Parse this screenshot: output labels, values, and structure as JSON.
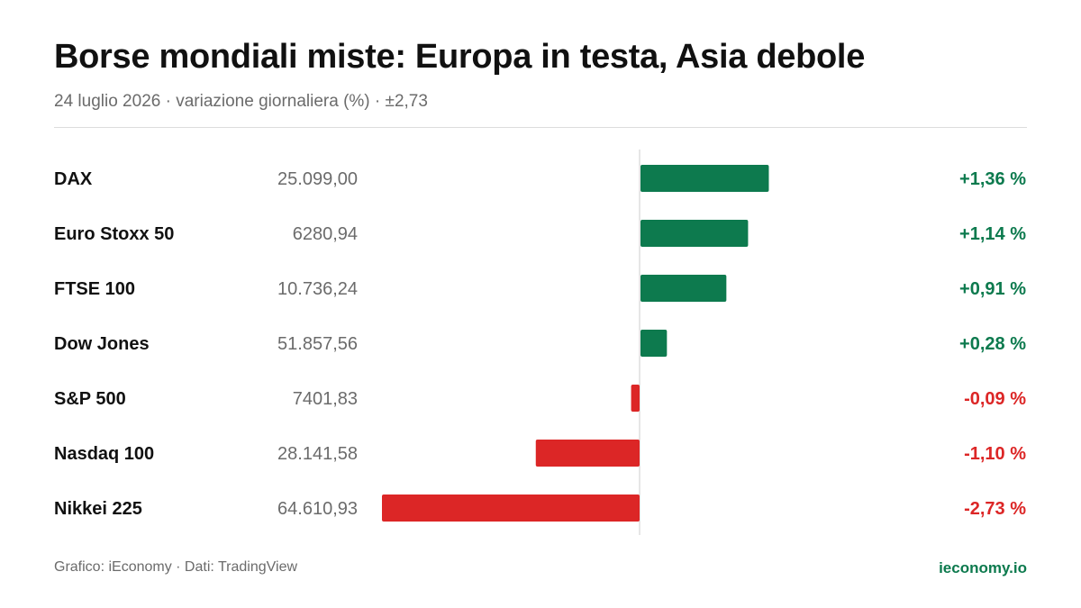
{
  "header": {
    "title": "Borse mondiali miste: Europa in testa, Asia debole",
    "subtitle": "24 luglio 2026 · variazione giornaliera (%) · ±2,73"
  },
  "footer": {
    "credit": "Grafico: iEconomy · Dati: TradingView",
    "site": "ieconomy.io"
  },
  "colors": {
    "positive": "#0d7a4e",
    "negative": "#dc2626",
    "label": "#111111",
    "value": "#6b6b6b",
    "axis": "#dddddd"
  },
  "chart_data": {
    "type": "bar",
    "orientation": "horizontal",
    "unit": "%",
    "xlim": [
      -2.73,
      2.73
    ],
    "categories": [
      "DAX",
      "Euro Stoxx 50",
      "FTSE 100",
      "Dow Jones",
      "S&P 500",
      "Nasdaq 100",
      "Nikkei 225"
    ],
    "levels": [
      "25.099,00",
      "6280,94",
      "10.736,24",
      "51.857,56",
      "7401,83",
      "28.141,58",
      "64.610,93"
    ],
    "values": [
      1.36,
      1.14,
      0.91,
      0.28,
      -0.09,
      -1.1,
      -2.73
    ],
    "value_labels": [
      "+1,36 %",
      "+1,14 %",
      "+0,91 %",
      "+0,28 %",
      "-0,09 %",
      "-1,10 %",
      "-2,73 %"
    ]
  }
}
